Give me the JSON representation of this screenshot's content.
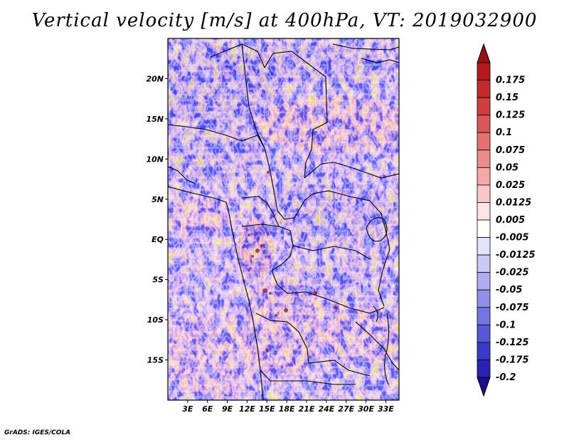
{
  "title": "Vertical velocity [m/s] at 400hPa, VT: 2019032900",
  "credit": "GrADS: IGES/COLA",
  "map": {
    "lon_range": [
      0,
      35
    ],
    "lat_range": [
      -20,
      25
    ],
    "lat_ticks": [
      {
        "value": 20,
        "label": "20N"
      },
      {
        "value": 15,
        "label": "15N"
      },
      {
        "value": 10,
        "label": "10N"
      },
      {
        "value": 5,
        "label": "5N"
      },
      {
        "value": 0,
        "label": "EQ"
      },
      {
        "value": -5,
        "label": "5S"
      },
      {
        "value": -10,
        "label": "10S"
      },
      {
        "value": -15,
        "label": "15S"
      }
    ],
    "lon_ticks": [
      {
        "value": 3,
        "label": "3E"
      },
      {
        "value": 6,
        "label": "6E"
      },
      {
        "value": 9,
        "label": "9E"
      },
      {
        "value": 12,
        "label": "12E"
      },
      {
        "value": 15,
        "label": "15E"
      },
      {
        "value": 18,
        "label": "18E"
      },
      {
        "value": 21,
        "label": "21E"
      },
      {
        "value": 24,
        "label": "24E"
      },
      {
        "value": 27,
        "label": "27E"
      },
      {
        "value": 30,
        "label": "30E"
      },
      {
        "value": 33,
        "label": "33E"
      }
    ]
  },
  "colorbar": {
    "top_color": "#9a1010",
    "bottom_color": "#1c0f8f",
    "levels": [
      {
        "label": "0.175",
        "color": "#b41a1a"
      },
      {
        "label": "0.15",
        "color": "#c42a2a"
      },
      {
        "label": "0.125",
        "color": "#d23d3d"
      },
      {
        "label": "0.1",
        "color": "#dd5555"
      },
      {
        "label": "0.075",
        "color": "#e57070"
      },
      {
        "label": "0.05",
        "color": "#ee8c8c"
      },
      {
        "label": "0.025",
        "color": "#f4a9a9"
      },
      {
        "label": "0.0125",
        "color": "#f9c7c7"
      },
      {
        "label": "0.005",
        "color": "#fde3e3"
      },
      {
        "label": "-0.005",
        "color": "#ffffff"
      },
      {
        "label": "-0.0125",
        "color": "#e4e4fb"
      },
      {
        "label": "-0.025",
        "color": "#c9c9f6"
      },
      {
        "label": "-0.05",
        "color": "#adadf0"
      },
      {
        "label": "-0.075",
        "color": "#9090ea"
      },
      {
        "label": "-0.1",
        "color": "#7474e2"
      },
      {
        "label": "-0.125",
        "color": "#5757d8"
      },
      {
        "label": "-0.175",
        "color": "#3a3ac9"
      },
      {
        "label": "-0.2",
        "color": "#2a22b4"
      }
    ]
  }
}
